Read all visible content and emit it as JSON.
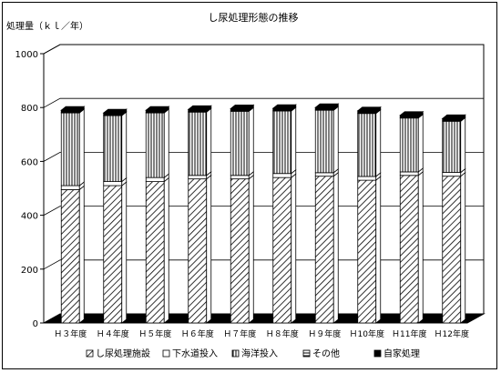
{
  "chart_data": {
    "type": "bar",
    "stacked": true,
    "three_d": true,
    "title": "し尿処理形態の推移",
    "ylabel": "処理量（ｋｌ／年）",
    "xlabel": "",
    "ylim": [
      0,
      1000
    ],
    "yticks": [
      0,
      200,
      400,
      600,
      800,
      1000
    ],
    "grid": true,
    "legend_position": "bottom",
    "categories": [
      "Ｈ３年度",
      "Ｈ４年度",
      "Ｈ５年度",
      "Ｈ６年度",
      "Ｈ７年度",
      "Ｈ８年度",
      "Ｈ９年度",
      "Ｈ10年度",
      "Ｈ11年度",
      "Ｈ12年度"
    ],
    "series": [
      {
        "name": "し尿処理施設",
        "pattern": "diagonal",
        "values": [
          495,
          510,
          525,
          535,
          535,
          540,
          545,
          530,
          548,
          545
        ]
      },
      {
        "name": "下水道投入",
        "pattern": "blank",
        "values": [
          15,
          15,
          15,
          13,
          13,
          15,
          13,
          14,
          13,
          14
        ]
      },
      {
        "name": "海洋投入",
        "pattern": "vertical",
        "values": [
          270,
          245,
          240,
          235,
          238,
          232,
          232,
          234,
          200,
          190
        ]
      },
      {
        "name": "その他",
        "pattern": "horizontal",
        "values": [
          2,
          2,
          2,
          2,
          2,
          2,
          2,
          2,
          2,
          2
        ]
      },
      {
        "name": "自家処理",
        "pattern": "solid",
        "values": [
          8,
          8,
          8,
          8,
          8,
          8,
          8,
          8,
          8,
          8
        ]
      }
    ]
  }
}
